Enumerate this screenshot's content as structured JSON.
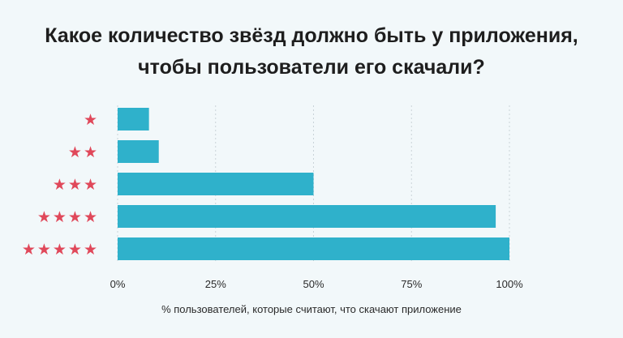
{
  "chart_data": {
    "type": "bar",
    "orientation": "horizontal",
    "title_lines": [
      "Какое количество звёзд должно быть у приложения,",
      "чтобы пользователи его скачали?"
    ],
    "categories": [
      "★",
      "★★",
      "★★★",
      "★★★★",
      "★★★★★"
    ],
    "values": [
      8,
      10.5,
      50,
      96.5,
      100
    ],
    "xlabel": "% пользователей, которые считают, что скачают приложение",
    "ylabel": "",
    "xlim": [
      0,
      100
    ],
    "xticks": [
      0,
      25,
      50,
      75,
      100
    ],
    "xtick_labels": [
      "0%",
      "25%",
      "50%",
      "75%",
      "100%"
    ],
    "grid": "vertical dotted",
    "colors": {
      "bar": "#2fb1cb",
      "star": "#e0485a",
      "grid": "#c9d3d8",
      "text": "#1e1e1e"
    }
  }
}
